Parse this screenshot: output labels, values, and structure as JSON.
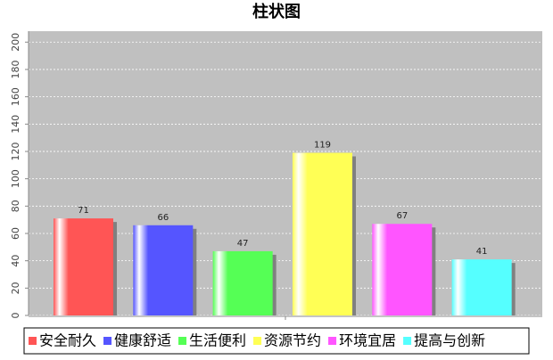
{
  "chart_data": {
    "type": "bar",
    "title": "柱状图",
    "categories": [
      null
    ],
    "series": [
      {
        "name": "安全耐久",
        "color": "#ff5555",
        "values": [
          71
        ]
      },
      {
        "name": "健康舒适",
        "color": "#5555ff",
        "values": [
          66
        ]
      },
      {
        "name": "生活便利",
        "color": "#55ff55",
        "values": [
          47
        ]
      },
      {
        "name": "资源节约",
        "color": "#ffff55",
        "values": [
          119
        ]
      },
      {
        "name": "环境宜居",
        "color": "#ff55ff",
        "values": [
          67
        ]
      },
      {
        "name": "提高与创新",
        "color": "#55ffff",
        "values": [
          41
        ]
      }
    ],
    "ylim": [
      0,
      208
    ],
    "yticks": [
      0,
      20,
      40,
      60,
      80,
      100,
      120,
      140,
      160,
      180,
      200
    ],
    "grid": true,
    "legend": "bottom"
  }
}
